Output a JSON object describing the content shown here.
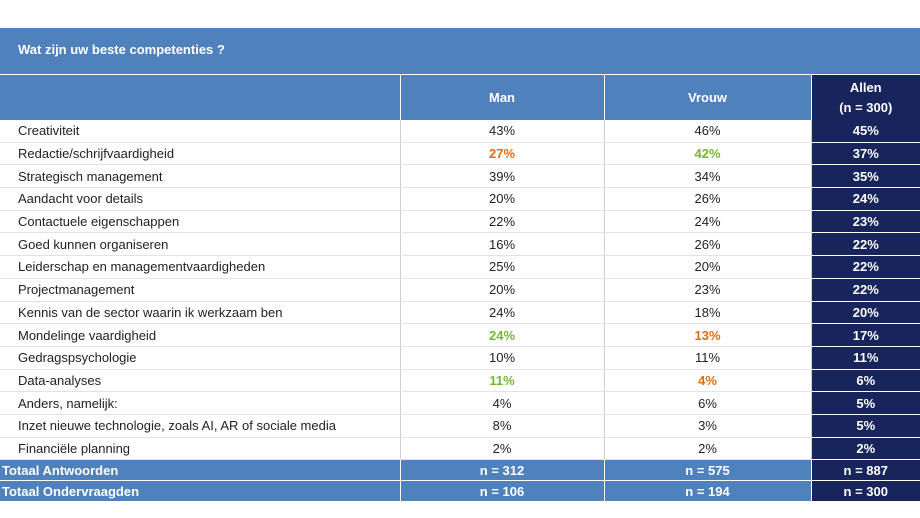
{
  "title": "Wat zijn uw beste competenties ?",
  "colors": {
    "header_blue": "#4f81bd",
    "navy": "#17255c",
    "orange_highlight": "#e46c0a",
    "green_highlight": "#76b532"
  },
  "headers": {
    "label": "",
    "man": "Man",
    "vrouw": "Vrouw",
    "allen_line1": "Allen",
    "allen_line2": "(n = 300)"
  },
  "chart_data": {
    "type": "table",
    "title": "Wat zijn uw beste competenties ?",
    "columns": [
      "Man",
      "Vrouw",
      "Allen (n = 300)"
    ],
    "rows": [
      {
        "label": "Creativiteit",
        "man": "43%",
        "vrouw": "46%",
        "allen": "45%",
        "man_hl": "",
        "vrouw_hl": ""
      },
      {
        "label": "Redactie/schrijfvaardigheid",
        "man": "27%",
        "vrouw": "42%",
        "allen": "37%",
        "man_hl": "orange",
        "vrouw_hl": "green"
      },
      {
        "label": "Strategisch management",
        "man": "39%",
        "vrouw": "34%",
        "allen": "35%",
        "man_hl": "",
        "vrouw_hl": ""
      },
      {
        "label": "Aandacht voor details",
        "man": "20%",
        "vrouw": "26%",
        "allen": "24%",
        "man_hl": "",
        "vrouw_hl": ""
      },
      {
        "label": "Contactuele eigenschappen",
        "man": "22%",
        "vrouw": "24%",
        "allen": "23%",
        "man_hl": "",
        "vrouw_hl": ""
      },
      {
        "label": "Goed kunnen organiseren",
        "man": "16%",
        "vrouw": "26%",
        "allen": "22%",
        "man_hl": "",
        "vrouw_hl": ""
      },
      {
        "label": "Leiderschap en managementvaardigheden",
        "man": "25%",
        "vrouw": "20%",
        "allen": "22%",
        "man_hl": "",
        "vrouw_hl": ""
      },
      {
        "label": "Projectmanagement",
        "man": "20%",
        "vrouw": "23%",
        "allen": "22%",
        "man_hl": "",
        "vrouw_hl": ""
      },
      {
        "label": "Kennis van de sector waarin ik werkzaam ben",
        "man": "24%",
        "vrouw": "18%",
        "allen": "20%",
        "man_hl": "",
        "vrouw_hl": ""
      },
      {
        "label": "Mondelinge vaardigheid",
        "man": "24%",
        "vrouw": "13%",
        "allen": "17%",
        "man_hl": "green",
        "vrouw_hl": "orange"
      },
      {
        "label": "Gedragspsychologie",
        "man": "10%",
        "vrouw": "11%",
        "allen": "11%",
        "man_hl": "",
        "vrouw_hl": ""
      },
      {
        "label": "Data-analyses",
        "man": "11%",
        "vrouw": "4%",
        "allen": "6%",
        "man_hl": "green",
        "vrouw_hl": "orange"
      },
      {
        "label": "Anders, namelijk:",
        "man": "4%",
        "vrouw": "6%",
        "allen": "5%",
        "man_hl": "",
        "vrouw_hl": ""
      },
      {
        "label": "Inzet nieuwe technologie, zoals AI, AR of sociale media",
        "man": "8%",
        "vrouw": "3%",
        "allen": "5%",
        "man_hl": "",
        "vrouw_hl": ""
      },
      {
        "label": "Financiële planning",
        "man": "2%",
        "vrouw": "2%",
        "allen": "2%",
        "man_hl": "",
        "vrouw_hl": ""
      }
    ],
    "totals": [
      {
        "label": "Totaal Antwoorden",
        "man": "n = 312",
        "vrouw": "n = 575",
        "allen": "n = 887"
      },
      {
        "label": "Totaal Ondervraagden",
        "man": "n = 106",
        "vrouw": "n = 194",
        "allen": "n = 300"
      }
    ]
  }
}
